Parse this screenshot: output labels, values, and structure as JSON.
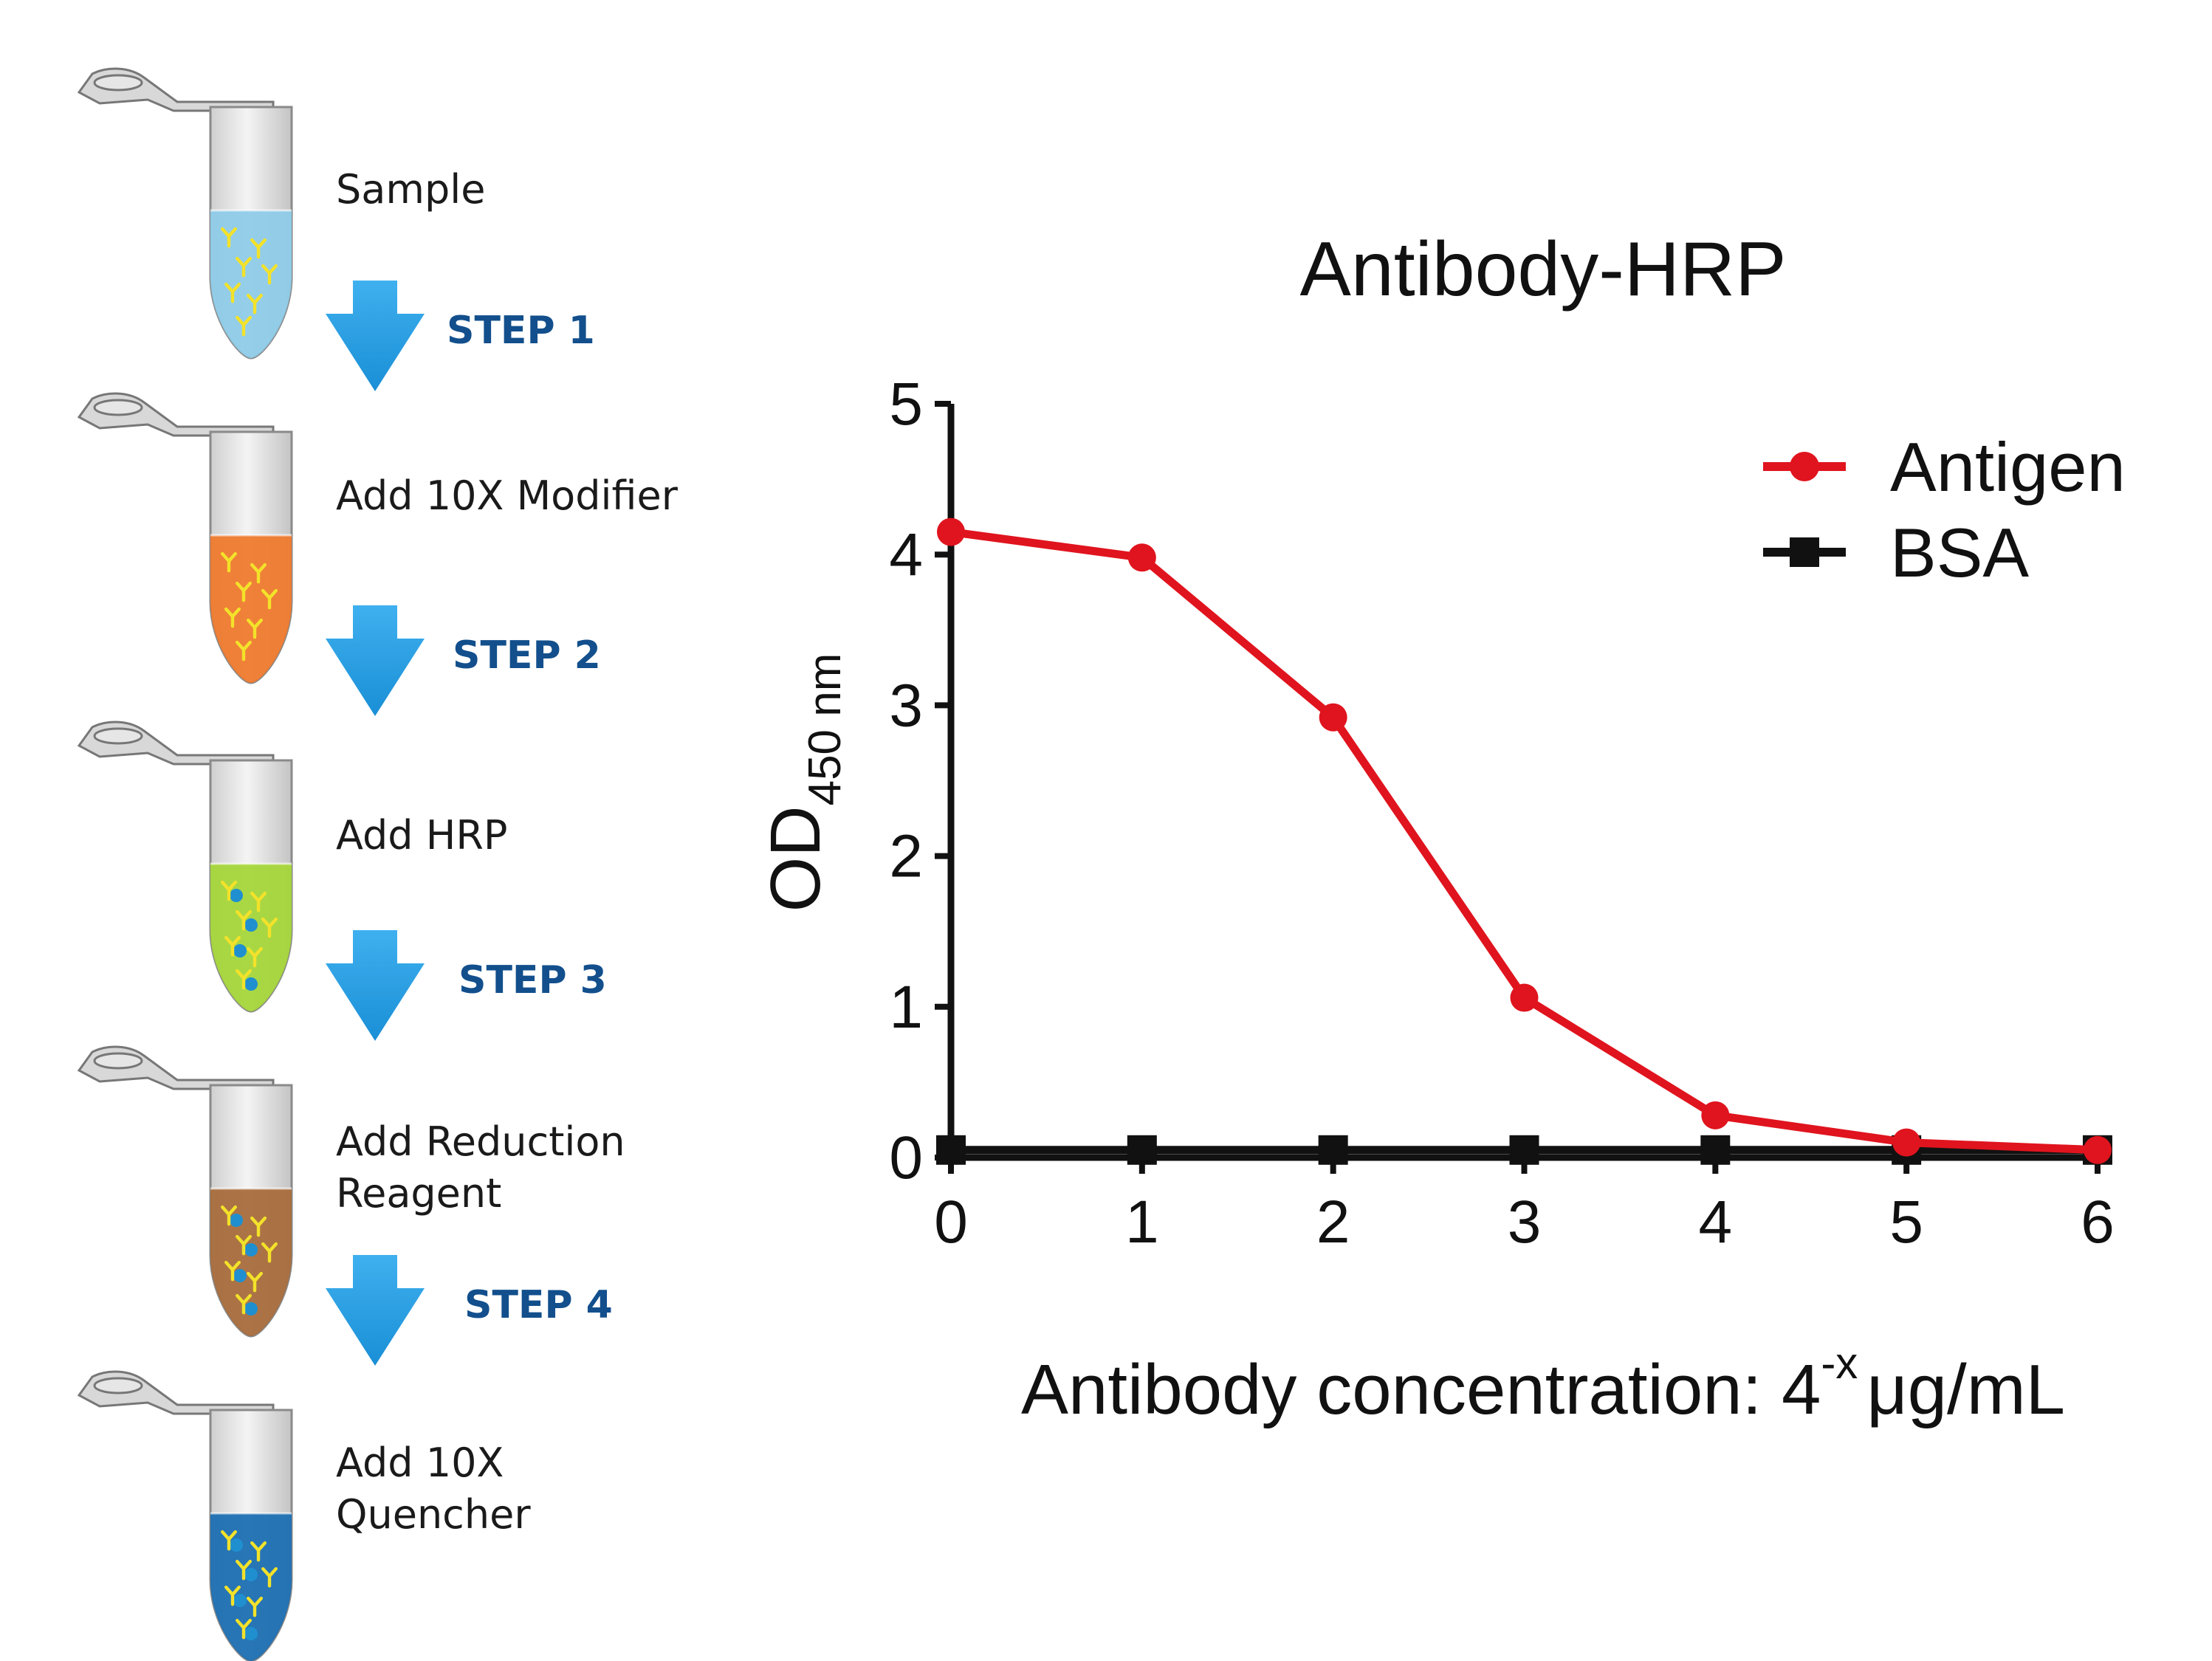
{
  "protocol": {
    "tube_labels": [
      [
        "Sample"
      ],
      [
        "Add 10X Modifier"
      ],
      [
        "Add HRP"
      ],
      [
        "Add Reduction",
        "Reagent"
      ],
      [
        "Add 10X",
        "Quencher"
      ]
    ],
    "steps": [
      "STEP 1",
      "STEP 2",
      "STEP 3",
      "STEP 4"
    ],
    "liquid_colors": [
      "#8fcbe8",
      "#ef7a2e",
      "#a5d63a",
      "#a86d3c",
      "#1c6fb2"
    ],
    "arrow_color": "#1f9be0",
    "step_color": "#124f8c"
  },
  "chart_data": {
    "type": "line",
    "title": "Antibody-HRP",
    "ylabel_main": "OD",
    "ylabel_sub": "450 nm",
    "xlabel_main": "Antibody concentration: 4",
    "xlabel_sup": "-x",
    "xlabel_unit": "μg/mL",
    "x": [
      0,
      1,
      2,
      3,
      4,
      5,
      6
    ],
    "xlim": [
      0,
      6
    ],
    "ylim": [
      0,
      5
    ],
    "xticks": [
      "0",
      "1",
      "2",
      "3",
      "4",
      "5",
      "6"
    ],
    "yticks": [
      "0",
      "1",
      "2",
      "3",
      "4",
      "5"
    ],
    "legend_position": "top-right",
    "grid": false,
    "series": [
      {
        "name": "Antigen",
        "values": [
          4.15,
          3.98,
          2.92,
          1.06,
          0.28,
          0.1,
          0.05
        ],
        "color": "#e0141e",
        "marker": "circle"
      },
      {
        "name": "BSA",
        "values": [
          0.05,
          0.05,
          0.05,
          0.05,
          0.05,
          0.05,
          0.05
        ],
        "color": "#111111",
        "marker": "square"
      }
    ]
  }
}
